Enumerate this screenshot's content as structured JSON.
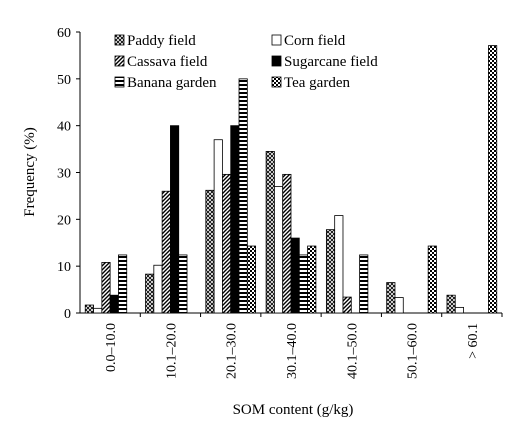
{
  "chart_data": {
    "type": "bar",
    "title": "",
    "xlabel": "SOM content (g/kg)",
    "ylabel": "Frequency (%)",
    "ylim": [
      0,
      60
    ],
    "yticks": [
      "0",
      "10",
      "20",
      "30",
      "40",
      "50",
      "60"
    ],
    "grid": false,
    "legend_position": "top",
    "categories": [
      "0.0–10.0",
      "10.1–20.0",
      "20.1–30.0",
      "30.1–40.0",
      "40.1–50.0",
      "50.1–60.0",
      "> 60.1"
    ],
    "series": [
      {
        "name": "Paddy field",
        "pattern": "crosshatch",
        "values": [
          1.7,
          8.3,
          26.2,
          34.5,
          17.8,
          6.5,
          3.8
        ]
      },
      {
        "name": "Corn field",
        "pattern": "white",
        "values": [
          1.0,
          10.2,
          37.0,
          27.0,
          20.8,
          3.3,
          1.2
        ]
      },
      {
        "name": "Cassava field",
        "pattern": "diagonal",
        "values": [
          10.8,
          26.0,
          29.6,
          29.6,
          3.4,
          0,
          0
        ]
      },
      {
        "name": "Sugarcane field",
        "pattern": "solid-black",
        "values": [
          3.8,
          40.0,
          40.0,
          16.0,
          0,
          0,
          0
        ]
      },
      {
        "name": "Banana garden",
        "pattern": "horizontal",
        "values": [
          12.4,
          12.4,
          50.0,
          12.4,
          12.4,
          0,
          0
        ]
      },
      {
        "name": "Tea garden",
        "pattern": "checker",
        "values": [
          0,
          0,
          14.3,
          14.3,
          0,
          14.3,
          57.1
        ]
      }
    ]
  }
}
